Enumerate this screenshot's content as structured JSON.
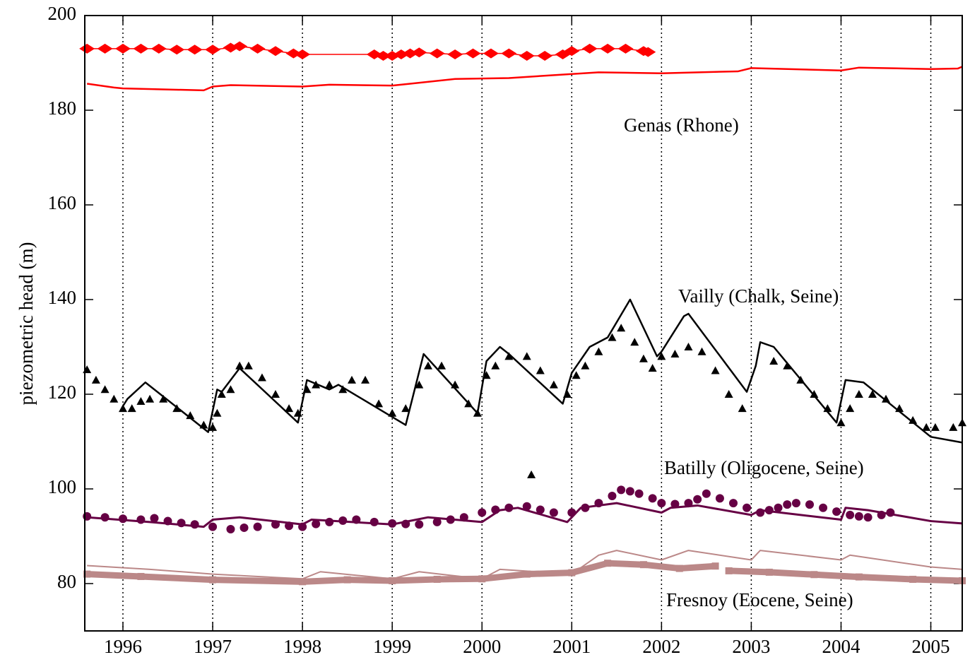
{
  "chart_data": {
    "type": "line",
    "y_label": "piezometric head (m)",
    "xlim": [
      1995.575,
      2005.35
    ],
    "xticks": [
      1996,
      1997,
      1998,
      1999,
      2000,
      2001,
      2002,
      2003,
      2004,
      2005
    ],
    "ylim": [
      70,
      200
    ],
    "yticks": [
      80,
      100,
      120,
      140,
      160,
      180,
      200
    ],
    "grid": "x",
    "annotations": [
      "Genas (Rhone)",
      "Vailly (Chalk, Seine)",
      "Batilly (Oligocene, Seine)",
      "Fresnoy (Eocene, Seine)"
    ],
    "series": [
      {
        "color": "#ff0000",
        "marker": "diamond",
        "line_width": 1.5,
        "x": [
          1995.6,
          1995.8,
          1996.0,
          1996.2,
          1996.4,
          1996.6,
          1996.8,
          1997.0,
          1997.2,
          1997.3,
          1997.5,
          1997.7,
          1997.9,
          1998.0,
          1998.8,
          1998.9,
          1999.0,
          1999.1,
          1999.2,
          1999.3,
          1999.5,
          1999.7,
          1999.9,
          2000.1,
          2000.3,
          2000.5,
          2000.7,
          2000.9,
          2001.0,
          2001.2,
          2001.4,
          2001.6,
          2001.8,
          2001.85
        ],
        "values": [
          193,
          193,
          193,
          193,
          193,
          192.8,
          192.8,
          192.8,
          193.2,
          193.5,
          193,
          192.5,
          192,
          191.8,
          191.8,
          191.5,
          191.5,
          191.8,
          192,
          192.2,
          192,
          191.8,
          192,
          192,
          192,
          191.5,
          191.5,
          191.8,
          192.5,
          193,
          193,
          193,
          192.5,
          192.3
        ]
      },
      {
        "color": "#ff0000",
        "marker": "none",
        "line_width": 2.5,
        "x": [
          1995.6,
          1995.9,
          1996.0,
          1996.9,
          1997.0,
          1997.2,
          1998.0,
          1998.3,
          1999.0,
          1999.2,
          1999.7,
          2000.3,
          2000.8,
          2001.3,
          2002.0,
          2002.6,
          2002.85,
          2003.0,
          2004.0,
          2004.2,
          2005.0,
          2005.3,
          2005.35
        ],
        "values": [
          185.6,
          184.8,
          184.6,
          184.2,
          185,
          185.3,
          185,
          185.4,
          185.2,
          185.6,
          186.6,
          186.8,
          187.4,
          188,
          187.8,
          188.1,
          188.2,
          188.9,
          188.4,
          189,
          188.7,
          188.8,
          189.2
        ]
      },
      {
        "color": "#000000",
        "marker": "triangle",
        "line_width": 0,
        "x": [
          1995.6,
          1995.7,
          1995.8,
          1995.9,
          1996.0,
          1996.1,
          1996.2,
          1996.3,
          1996.45,
          1996.6,
          1996.75,
          1996.9,
          1997.0,
          1997.05,
          1997.1,
          1997.2,
          1997.3,
          1997.4,
          1997.55,
          1997.7,
          1997.85,
          1997.95,
          1998.05,
          1998.15,
          1998.3,
          1998.45,
          1998.55,
          1998.7,
          1998.85,
          1999.0,
          1999.15,
          1999.3,
          1999.4,
          1999.55,
          1999.7,
          1999.85,
          1999.95,
          2000.05,
          2000.15,
          2000.3,
          2000.5,
          2000.55,
          2000.65,
          2000.8,
          2000.95,
          2001.05,
          2001.15,
          2001.3,
          2001.45,
          2001.55,
          2001.7,
          2001.8,
          2001.9,
          2002.0,
          2002.15,
          2002.3,
          2002.45,
          2002.6,
          2002.75,
          2002.9,
          2003.25,
          2003.4,
          2003.55,
          2003.7,
          2003.85,
          2004.0,
          2004.1,
          2004.2,
          2004.35,
          2004.5,
          2004.65,
          2004.8,
          2004.95,
          2005.05,
          2005.25,
          2005.35
        ],
        "values": [
          125.2,
          123,
          121,
          119,
          117,
          117,
          118.5,
          119,
          119,
          117,
          115.5,
          113.5,
          113,
          116,
          120,
          121,
          126,
          126,
          123.5,
          120,
          117,
          116,
          121,
          122,
          122,
          121,
          123,
          123,
          118,
          116,
          117,
          122,
          126,
          126,
          122,
          118,
          116,
          124,
          126,
          128,
          128,
          103,
          125,
          122,
          120,
          124,
          126,
          129,
          132,
          134,
          131,
          127.5,
          125.5,
          128,
          128.5,
          130,
          129,
          125,
          120,
          117,
          127,
          126,
          123,
          120,
          117,
          114,
          117,
          120,
          120,
          119,
          117,
          114.5,
          113,
          113,
          113,
          114
        ]
      },
      {
        "color": "#000000",
        "marker": "none",
        "line_width": 2.5,
        "x": [
          1996.0,
          1996.05,
          1996.25,
          1996.95,
          1997.05,
          1997.1,
          1997.3,
          1997.95,
          1998.05,
          1998.3,
          1998.4,
          1999.15,
          1999.35,
          1999.95,
          2000.05,
          2000.2,
          2000.3,
          2000.9,
          2001.0,
          2001.2,
          2001.4,
          2001.65,
          2001.95,
          2002.0,
          2002.25,
          2002.3,
          2002.95,
          2003.05,
          2003.1,
          2003.25,
          2003.95,
          2004.05,
          2004.25,
          2005.0,
          2005.35
        ],
        "values": [
          117.5,
          119,
          122.5,
          112,
          121,
          120.5,
          125.5,
          114,
          123,
          121,
          122,
          113.5,
          128.5,
          116,
          127,
          130,
          128.5,
          118,
          124.5,
          130,
          132,
          140,
          128,
          129,
          136.5,
          137,
          120.5,
          126,
          131,
          130,
          114,
          123,
          122.5,
          111,
          109.8
        ]
      },
      {
        "color": "#660044",
        "marker": "circle",
        "line_width": 0,
        "x": [
          1995.6,
          1995.8,
          1996.0,
          1996.2,
          1996.35,
          1996.5,
          1996.65,
          1996.8,
          1997.0,
          1997.2,
          1997.35,
          1997.5,
          1997.7,
          1997.85,
          1998.0,
          1998.15,
          1998.3,
          1998.45,
          1998.6,
          1998.8,
          1999.0,
          1999.15,
          1999.3,
          1999.5,
          1999.65,
          1999.8,
          2000.0,
          2000.15,
          2000.3,
          2000.5,
          2000.65,
          2000.8,
          2001.0,
          2001.15,
          2001.3,
          2001.45,
          2001.55,
          2001.65,
          2001.75,
          2001.9,
          2002.0,
          2002.15,
          2002.3,
          2002.4,
          2002.5,
          2002.65,
          2002.8,
          2002.95,
          2003.1,
          2003.2,
          2003.3,
          2003.4,
          2003.5,
          2003.65,
          2003.8,
          2003.95,
          2004.1,
          2004.2,
          2004.3,
          2004.45,
          2004.55
        ],
        "values": [
          94.2,
          94,
          93.7,
          93.5,
          93.8,
          93.2,
          92.8,
          92.5,
          92,
          91.5,
          91.8,
          92,
          92.5,
          92.2,
          92,
          92.6,
          93,
          93.3,
          93.5,
          93,
          92.7,
          92.6,
          92.5,
          93,
          93.5,
          94,
          95,
          95.6,
          96,
          96.3,
          95.6,
          95,
          95,
          96,
          97,
          98.5,
          99.8,
          99.5,
          99,
          98,
          97,
          96.8,
          97,
          97.8,
          99,
          98,
          97,
          96,
          95,
          95.5,
          96,
          96.7,
          97,
          96.7,
          96,
          95.2,
          94.5,
          94.2,
          94,
          94.5,
          95
        ]
      },
      {
        "color": "#660044",
        "marker": "none",
        "line_width": 3,
        "x": [
          1995.6,
          1996.3,
          1996.9,
          1997.0,
          1997.3,
          1998.0,
          1998.1,
          1999.0,
          1999.4,
          2000.0,
          2000.2,
          2000.4,
          2000.95,
          2001.1,
          2001.5,
          2002.0,
          2002.1,
          2002.4,
          2003.0,
          2003.1,
          2004.0,
          2004.05,
          2004.3,
          2005.0,
          2005.35
        ],
        "values": [
          94,
          93,
          92,
          93.5,
          94,
          92.5,
          93.5,
          92.5,
          94,
          93,
          95.5,
          96,
          93,
          96,
          97,
          95,
          96,
          96.5,
          94.5,
          95.5,
          93.5,
          96,
          95.5,
          93.2,
          92.7
        ]
      },
      {
        "color": "#bb8888",
        "marker": "square",
        "line_width": 9,
        "x": [
          1995.6,
          1996.2,
          1997.0,
          1998.0,
          1998.5,
          1999.0,
          1999.5,
          2000.0,
          2000.5,
          2001.0,
          2001.4,
          2001.8,
          2002.2,
          2002.6,
          2002.7,
          2002.75,
          2003.2,
          2003.7,
          2004.2,
          2004.8,
          2005.35
        ],
        "values": [
          82,
          81.5,
          80.8,
          80.4,
          80.8,
          80.6,
          80.9,
          81,
          82,
          82.3,
          84.3,
          84,
          83.2,
          83.7,
          null,
          82.7,
          82.4,
          81.9,
          81.4,
          80.9,
          80.6
        ]
      },
      {
        "color": "#bb8888",
        "marker": "none",
        "line_width": 2,
        "x": [
          1995.6,
          1996.3,
          1997.0,
          1998.0,
          1998.2,
          1999.0,
          1999.3,
          2000.0,
          2000.2,
          2001.0,
          2001.3,
          2001.5,
          2002.0,
          2002.3,
          2003.0,
          2003.1,
          2004.0,
          2004.1,
          2005.0,
          2005.35
        ],
        "values": [
          83.8,
          83,
          82,
          81,
          82.5,
          81,
          82.5,
          81,
          83,
          82,
          86,
          87,
          85,
          87,
          85,
          87,
          85,
          86,
          83.5,
          83
        ]
      }
    ]
  }
}
